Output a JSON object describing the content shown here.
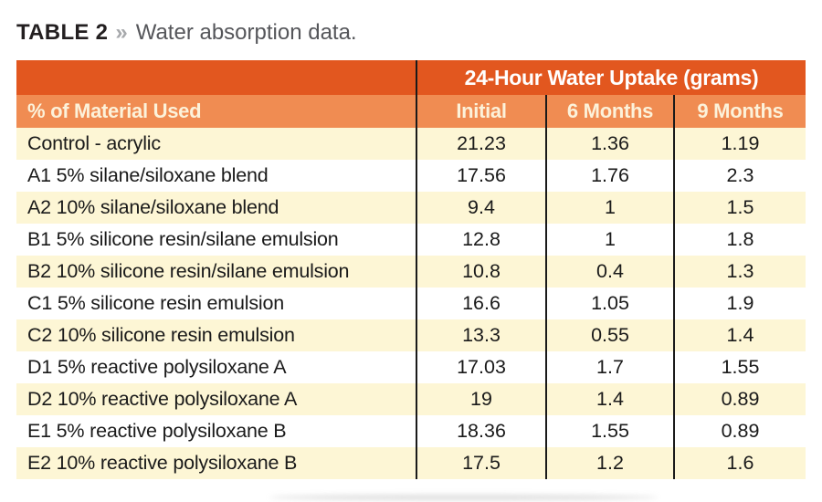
{
  "title": {
    "label": "TABLE 2",
    "separator": "»",
    "caption": "Water absorption data."
  },
  "chart_data": {
    "type": "table",
    "title": "TABLE 2 » Water absorption data.",
    "group_header": "24-Hour Water Uptake (grams)",
    "columns": [
      "% of Material Used",
      "Initial",
      "6 Months",
      "9 Months"
    ],
    "rows": [
      [
        "Control - acrylic",
        "21.23",
        "1.36",
        "1.19"
      ],
      [
        "A1 5% silane/siloxane blend",
        "17.56",
        "1.76",
        "2.3"
      ],
      [
        "A2 10% silane/siloxane blend",
        "9.4",
        "1",
        "1.5"
      ],
      [
        "B1 5% silicone resin/silane emulsion",
        "12.8",
        "1",
        "1.8"
      ],
      [
        "B2 10% silicone resin/silane emulsion",
        "10.8",
        "0.4",
        "1.3"
      ],
      [
        "C1 5% silicone resin emulsion",
        "16.6",
        "1.05",
        "1.9"
      ],
      [
        "C2 10% silicone resin emulsion",
        "13.3",
        "0.55",
        "1.4"
      ],
      [
        "D1 5% reactive polysiloxane A",
        "17.03",
        "1.7",
        "1.55"
      ],
      [
        "D2 10% reactive polysiloxane A",
        "19",
        "1.4",
        "0.89"
      ],
      [
        "E1 5% reactive polysiloxane B",
        "18.36",
        "1.55",
        "0.89"
      ],
      [
        "E2 10% reactive polysiloxane B",
        "17.5",
        "1.2",
        "1.6"
      ]
    ],
    "colors": {
      "header_dark_orange": "#e2571f",
      "header_light_orange": "#f08c52",
      "row_cream": "#fdf6d5",
      "row_white": "#ffffff",
      "divider_black": "#1a1a1a",
      "header_text": "#ffffff",
      "subheader_text": "#fcf2da",
      "body_text": "#1a1a1a"
    }
  }
}
